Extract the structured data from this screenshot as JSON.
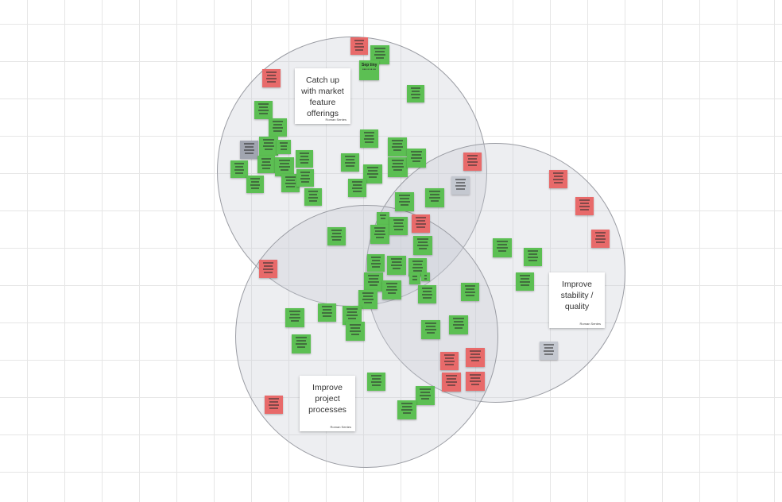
{
  "board": {
    "clusters": [
      {
        "title": "Catch up with market feature offerings",
        "author": "Roman Sentes"
      },
      {
        "title": "Improve stability / quality",
        "author": "Roman Sentes"
      },
      {
        "title": "Improve project processes",
        "author": "Roman Sentes"
      }
    ],
    "labeled_note": {
      "title": "Sep tiny",
      "subtitle": "●●● ● ●● ●●"
    },
    "colors": {
      "green": "#5cbf53",
      "red": "#e86a6a",
      "grey": "#a1a5b0",
      "light_grey": "#c4c8d0",
      "circle_fill": "#c8cbd4",
      "circle_stroke": "#9a9ca3"
    }
  }
}
